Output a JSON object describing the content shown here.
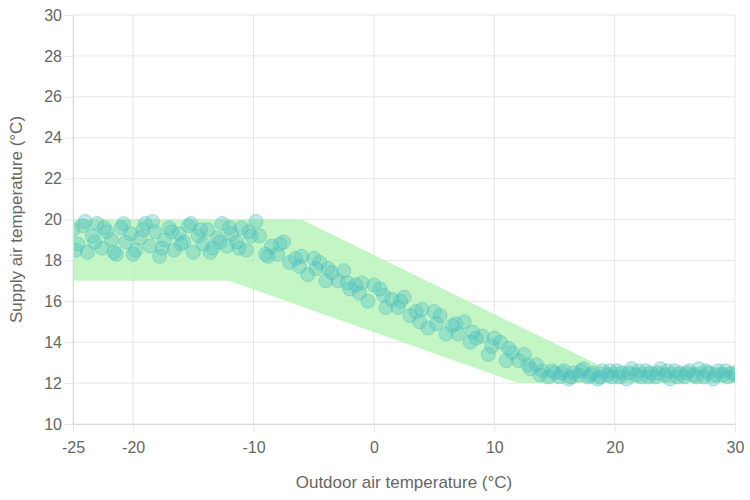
{
  "chart_data": {
    "type": "scatter",
    "x_label": "Outdoor air temperature (°C)",
    "y_label": "Supply air temperature (°C)",
    "xlim": [
      -25,
      30
    ],
    "xticks": [
      -25,
      -20,
      -10,
      0,
      10,
      20,
      30
    ],
    "ylim": [
      10,
      30
    ],
    "yticks": [
      10,
      12,
      14,
      16,
      18,
      20,
      22,
      24,
      26,
      28,
      30
    ],
    "grid": true,
    "series": [
      {
        "type": "area",
        "color": "#b5f2b5",
        "x": [
          -25,
          -12,
          -6,
          12,
          19,
          30
        ],
        "values": [
          20,
          20,
          20,
          14.8,
          12.8,
          12.8
        ],
        "lower": [
          17,
          17,
          15.75,
          12,
          12,
          12
        ]
      },
      {
        "type": "scatter",
        "color": "#4dbfbf",
        "marker": "circle",
        "x": [
          -25,
          -24.6,
          -24.2,
          -23.8,
          -23.4,
          -23,
          -22.6,
          -22.2,
          -21.8,
          -21.4,
          -21,
          -20.6,
          -20.2,
          -19.8,
          -19.4,
          -19,
          -18.6,
          -18.2,
          -17.8,
          -17.4,
          -17,
          -16.6,
          -16.2,
          -15.8,
          -15.4,
          -15,
          -14.6,
          -14.2,
          -13.8,
          -13.4,
          -13,
          -12.6,
          -12.2,
          -11.8,
          -11.4,
          -11,
          -10.6,
          -10.2,
          -9.8,
          -24.8,
          -24,
          -23.2,
          -22.4,
          -21.6,
          -20.8,
          -20,
          -19.2,
          -18.4,
          -17.6,
          -16.8,
          -16,
          -15.2,
          -14.4,
          -13.6,
          -12.8,
          -12,
          -11.2,
          -10.4,
          -9.5,
          -9,
          -8.5,
          -8,
          -7.5,
          -7,
          -6.5,
          -6,
          -5.5,
          -5,
          -4.5,
          -4,
          -3.5,
          -3,
          -2.5,
          -2,
          -1.5,
          -1,
          -0.5,
          0,
          0.5,
          1,
          1.5,
          2,
          2.5,
          3,
          3.5,
          4,
          4.5,
          5,
          5.5,
          6,
          6.5,
          7,
          7.5,
          8,
          8.5,
          9,
          9.5,
          10,
          10.5,
          11,
          11.5,
          12,
          12.5,
          13,
          13.5,
          14,
          14.5,
          15,
          -8.8,
          -7.8,
          -6.2,
          -4.8,
          -3.8,
          -2.2,
          -1.2,
          0.8,
          2.2,
          3.8,
          5.2,
          6.8,
          8.2,
          9.8,
          11.2,
          12.8,
          13.8,
          14.8,
          15.4,
          15.8,
          16.2,
          16.6,
          17,
          17.4,
          17.8,
          18.2,
          18.6,
          19,
          19.4,
          19.8,
          20.2,
          20.6,
          21,
          21.4,
          21.8,
          22.2,
          22.6,
          23,
          23.4,
          23.8,
          24.2,
          24.6,
          25,
          25.4,
          25.8,
          26.2,
          26.6,
          27,
          27.4,
          27.8,
          28.2,
          28.6,
          29,
          29.4,
          29.8,
          15.6,
          16.4,
          17.2,
          18,
          18.8,
          19.6,
          20.4,
          21.2,
          22,
          22.8,
          23.6,
          24.4,
          25.2,
          26,
          26.8,
          27.6,
          28.4,
          29.2,
          30
        ],
        "values": [
          19.5,
          18.8,
          19.7,
          18.4,
          19.2,
          19.8,
          18.6,
          19.4,
          19.0,
          18.3,
          19.6,
          18.9,
          19.3,
          18.5,
          19.1,
          19.8,
          18.7,
          19.4,
          18.2,
          19.0,
          19.6,
          18.5,
          19.3,
          18.9,
          19.7,
          18.4,
          19.2,
          18.8,
          19.5,
          18.6,
          19.1,
          19.8,
          18.7,
          19.3,
          18.9,
          19.6,
          18.5,
          19.2,
          19.9,
          18.5,
          19.9,
          18.9,
          19.6,
          18.4,
          19.8,
          18.3,
          19.5,
          19.9,
          18.6,
          19.4,
          18.8,
          19.8,
          19.5,
          18.4,
          18.9,
          19.6,
          18.6,
          19.4,
          19.2,
          18.3,
          18.7,
          18.3,
          18.9,
          17.9,
          18.1,
          18.2,
          17.3,
          18.1,
          17.9,
          17.0,
          17.4,
          17.0,
          17.5,
          16.6,
          16.8,
          16.9,
          16.0,
          16.8,
          16.6,
          15.7,
          16.1,
          15.7,
          16.2,
          15.3,
          15.5,
          15.6,
          14.7,
          15.5,
          15.3,
          14.4,
          14.8,
          14.4,
          15.0,
          14.0,
          14.2,
          14.3,
          13.4,
          14.2,
          14.0,
          13.1,
          13.5,
          13.1,
          13.4,
          12.7,
          12.9,
          12.6,
          12.3,
          12.5,
          18.2,
          18.8,
          17.7,
          17.6,
          17.6,
          16.9,
          16.4,
          16.3,
          16.0,
          15.0,
          14.9,
          14.9,
          14.5,
          13.8,
          13.7,
          12.9,
          12.4,
          12.6,
          12.3,
          12.6,
          12.2,
          12.5,
          12.4,
          12.7,
          12.3,
          12.5,
          12.2,
          12.6,
          12.4,
          12.3,
          12.6,
          12.5,
          12.2,
          12.7,
          12.4,
          12.3,
          12.6,
          12.5,
          12.3,
          12.7,
          12.4,
          12.2,
          12.6,
          12.5,
          12.3,
          12.6,
          12.4,
          12.7,
          12.3,
          12.5,
          12.2,
          12.6,
          12.4,
          12.3,
          12.5,
          12.5,
          12.3,
          12.6,
          12.4,
          12.3,
          12.6,
          12.3,
          12.5,
          12.6,
          12.3,
          12.5,
          12.6,
          12.3,
          12.5,
          12.3,
          12.6,
          12.4,
          12.6,
          12.4
        ]
      }
    ]
  }
}
